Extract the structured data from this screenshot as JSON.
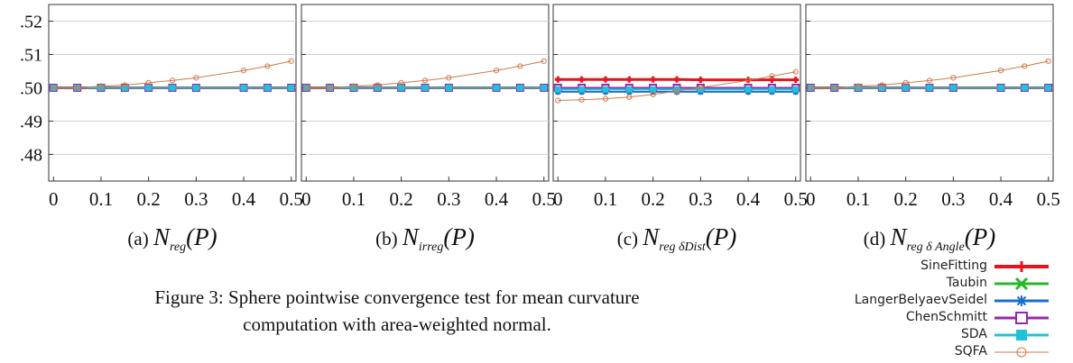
{
  "chart_data": [
    {
      "type": "line",
      "subplot_letter": "(a)",
      "subplot_math": "N",
      "subplot_sub": "reg",
      "subplot_arg": "(P)",
      "x": [
        0,
        0.05,
        0.1,
        0.15,
        0.2,
        0.25,
        0.3,
        0.4,
        0.45,
        0.5
      ],
      "xlim": [
        -0.01,
        0.51
      ],
      "ylim": [
        0.472,
        0.525
      ],
      "series": [
        {
          "name": "SineFitting",
          "values": [
            0.5,
            0.5,
            0.5,
            0.5,
            0.5,
            0.5,
            0.5,
            0.5,
            0.5,
            0.5
          ]
        },
        {
          "name": "Taubin",
          "values": [
            0.5,
            0.5,
            0.5,
            0.5,
            0.5,
            0.5,
            0.5,
            0.5,
            0.5,
            0.5
          ]
        },
        {
          "name": "LangerBelyaevSeidel",
          "values": [
            0.5,
            0.5,
            0.5,
            0.5,
            0.5,
            0.5,
            0.5,
            0.5,
            0.5,
            0.5
          ]
        },
        {
          "name": "ChenSchmitt",
          "values": [
            0.5,
            0.5,
            0.5,
            0.5,
            0.5,
            0.5,
            0.5,
            0.5,
            0.5,
            0.5
          ]
        },
        {
          "name": "SDA",
          "values": [
            0.5,
            0.5,
            0.5,
            0.5,
            0.5,
            0.5,
            0.5,
            0.5,
            0.5,
            0.5
          ]
        },
        {
          "name": "SQFA",
          "values": [
            0.5,
            0.5,
            0.5005,
            0.5008,
            0.5015,
            0.5022,
            0.503,
            0.5052,
            0.5065,
            0.508
          ]
        }
      ]
    },
    {
      "type": "line",
      "subplot_letter": "(b)",
      "subplot_math": "N",
      "subplot_sub": "irreg",
      "subplot_arg": "(P)",
      "x": [
        0,
        0.05,
        0.1,
        0.15,
        0.2,
        0.25,
        0.3,
        0.4,
        0.45,
        0.5
      ],
      "xlim": [
        -0.01,
        0.51
      ],
      "ylim": [
        0.472,
        0.525
      ],
      "series": [
        {
          "name": "SineFitting",
          "values": [
            0.5,
            0.5,
            0.5,
            0.5,
            0.5,
            0.5,
            0.5,
            0.5,
            0.5,
            0.5
          ]
        },
        {
          "name": "Taubin",
          "values": [
            0.5,
            0.5,
            0.5,
            0.5,
            0.5,
            0.5,
            0.5,
            0.5,
            0.5,
            0.5
          ]
        },
        {
          "name": "LangerBelyaevSeidel",
          "values": [
            0.5,
            0.5,
            0.5,
            0.5,
            0.5,
            0.5,
            0.5,
            0.5,
            0.5,
            0.5
          ]
        },
        {
          "name": "ChenSchmitt",
          "values": [
            0.5,
            0.5,
            0.5,
            0.5,
            0.5,
            0.5,
            0.5,
            0.5,
            0.5,
            0.5
          ]
        },
        {
          "name": "SDA",
          "values": [
            0.5,
            0.5,
            0.5,
            0.5,
            0.5,
            0.5,
            0.5,
            0.5,
            0.5,
            0.5
          ]
        },
        {
          "name": "SQFA",
          "values": [
            0.5,
            0.5,
            0.5005,
            0.5008,
            0.5015,
            0.5022,
            0.503,
            0.5052,
            0.5065,
            0.508
          ]
        }
      ]
    },
    {
      "type": "line",
      "subplot_letter": "(c)",
      "subplot_math": "N",
      "subplot_sub": "reg δDist",
      "subplot_arg": "(P)",
      "x": [
        0,
        0.05,
        0.1,
        0.15,
        0.2,
        0.25,
        0.3,
        0.4,
        0.45,
        0.5
      ],
      "xlim": [
        -0.01,
        0.51
      ],
      "ylim": [
        0.472,
        0.525
      ],
      "series": [
        {
          "name": "SineFitting",
          "values": [
            0.5025,
            0.5025,
            0.5025,
            0.5025,
            0.5025,
            0.5025,
            0.5024,
            0.5024,
            0.5024,
            0.5024
          ]
        },
        {
          "name": "Taubin",
          "values": [
            0.5,
            0.5,
            0.5,
            0.5,
            0.5,
            0.5,
            0.5,
            0.5,
            0.5,
            0.5
          ]
        },
        {
          "name": "LangerBelyaevSeidel",
          "values": [
            0.4988,
            0.4988,
            0.4988,
            0.4988,
            0.4988,
            0.4988,
            0.4988,
            0.4988,
            0.4988,
            0.4988
          ]
        },
        {
          "name": "ChenSchmitt",
          "values": [
            0.5,
            0.5,
            0.5,
            0.5,
            0.5,
            0.5,
            0.5,
            0.5,
            0.5,
            0.5
          ]
        },
        {
          "name": "SDA",
          "values": [
            0.4995,
            0.4995,
            0.4995,
            0.4995,
            0.4995,
            0.4995,
            0.4995,
            0.4995,
            0.4995,
            0.4995
          ]
        },
        {
          "name": "SQFA",
          "values": [
            0.4962,
            0.4964,
            0.4967,
            0.4972,
            0.498,
            0.499,
            0.5001,
            0.5022,
            0.5035,
            0.5048
          ]
        }
      ]
    },
    {
      "type": "line",
      "subplot_letter": "(d)",
      "subplot_math": "N",
      "subplot_sub": "reg δ Angle",
      "subplot_arg": "(P)",
      "x": [
        0,
        0.05,
        0.1,
        0.15,
        0.2,
        0.25,
        0.3,
        0.4,
        0.45,
        0.5
      ],
      "xlim": [
        -0.01,
        0.51
      ],
      "ylim": [
        0.472,
        0.525
      ],
      "series": [
        {
          "name": "SineFitting",
          "values": [
            0.5,
            0.5,
            0.5,
            0.5,
            0.5,
            0.5,
            0.5,
            0.5,
            0.5,
            0.5
          ]
        },
        {
          "name": "Taubin",
          "values": [
            0.5,
            0.5,
            0.5,
            0.5,
            0.5,
            0.5,
            0.5,
            0.5,
            0.5,
            0.5
          ]
        },
        {
          "name": "LangerBelyaevSeidel",
          "values": [
            0.5,
            0.5,
            0.5,
            0.5,
            0.5,
            0.5,
            0.5,
            0.5,
            0.5,
            0.5
          ]
        },
        {
          "name": "ChenSchmitt",
          "values": [
            0.5,
            0.5,
            0.5,
            0.5,
            0.5,
            0.5,
            0.5,
            0.5,
            0.5,
            0.5
          ]
        },
        {
          "name": "SDA",
          "values": [
            0.5,
            0.5,
            0.5,
            0.5,
            0.5,
            0.5,
            0.5,
            0.5,
            0.5,
            0.5
          ]
        },
        {
          "name": "SQFA",
          "values": [
            0.5,
            0.5,
            0.5005,
            0.5008,
            0.5015,
            0.5022,
            0.503,
            0.5052,
            0.5065,
            0.508
          ]
        }
      ]
    }
  ],
  "y_ticks": [
    {
      "value": 0.52,
      "label": ".52"
    },
    {
      "value": 0.51,
      "label": ".51"
    },
    {
      "value": 0.5,
      "label": ".50"
    },
    {
      "value": 0.49,
      "label": ".49"
    },
    {
      "value": 0.48,
      "label": ".48"
    }
  ],
  "x_ticks": [
    {
      "value": 0,
      "label": "0"
    },
    {
      "value": 0.1,
      "label": "0.1"
    },
    {
      "value": 0.2,
      "label": "0.2"
    },
    {
      "value": 0.3,
      "label": "0.3"
    },
    {
      "value": 0.4,
      "label": "0.4"
    },
    {
      "value": 0.5,
      "label": "0.5"
    }
  ],
  "legend": {
    "position": "bottom-right",
    "entries": [
      {
        "name": "SineFitting",
        "color": "#e8141c",
        "marker": "plus"
      },
      {
        "name": "Taubin",
        "color": "#2bb52b",
        "marker": "cross"
      },
      {
        "name": "LangerBelyaevSeidel",
        "color": "#1a6fc9",
        "marker": "star"
      },
      {
        "name": "ChenSchmitt",
        "color": "#9b27b0",
        "marker": "open-square"
      },
      {
        "name": "SDA",
        "color": "#1fc3d8",
        "marker": "filled-square"
      },
      {
        "name": "SQFA",
        "color": "#cf7a4a",
        "marker": "open-circle"
      }
    ]
  },
  "caption": {
    "line1": "Figure 3: Sphere pointwise convergence test for mean curvature",
    "line2": "computation with area-weighted normal."
  }
}
